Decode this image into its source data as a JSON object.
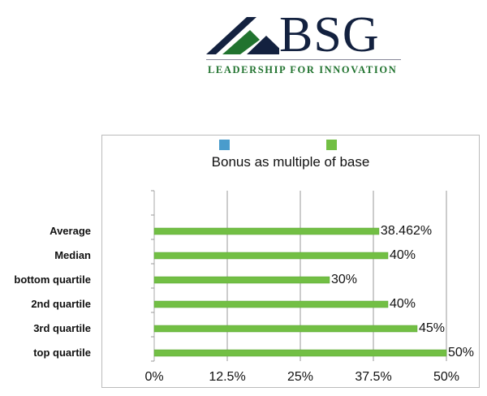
{
  "logo": {
    "name": "BSG",
    "tagline": "LEADERSHIP FOR INNOVATION",
    "colors": {
      "navy": "#13213f",
      "green": "#21732f"
    }
  },
  "chart_data": {
    "type": "bar",
    "orientation": "horizontal",
    "title": "Bonus as multiple of base",
    "categories": [
      "Average",
      "Median",
      "bottom quartile",
      "2nd quartile",
      "3rd quartile",
      "top quartile"
    ],
    "values": [
      38.462,
      40,
      30,
      40,
      45,
      50
    ],
    "data_labels": [
      "38.462%",
      "40%",
      "30%",
      "40%",
      "45%",
      "50%"
    ],
    "xlim": [
      0,
      50
    ],
    "x_ticks": [
      "0%",
      "12.5%",
      "25%",
      "37.5%",
      "50%"
    ],
    "grid": true,
    "legend": {
      "placement": "top",
      "entries": [
        {
          "color": "#4a9ccc"
        },
        {
          "color": "#72bf44"
        }
      ]
    },
    "bar_color": "#72bf44"
  }
}
